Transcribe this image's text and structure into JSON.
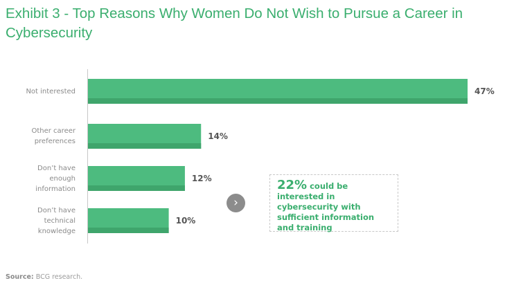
{
  "chart_data": {
    "type": "bar",
    "orientation": "horizontal",
    "title": "Exhibit 3 - Top Reasons Why Women Do Not Wish to Pursue a Career in Cybersecurity",
    "categories": [
      "Not interested",
      "Other career preferences",
      "Don’t have enough information",
      "Don’t have technical knowledge"
    ],
    "category_lines": [
      [
        "Not interested"
      ],
      [
        "Other career",
        "preferences"
      ],
      [
        "Don’t have",
        "enough",
        "information"
      ],
      [
        "Don’t have",
        "technical",
        "knowledge"
      ]
    ],
    "values": [
      47,
      14,
      12,
      10
    ],
    "value_labels": [
      "47%",
      "14%",
      "12%",
      "10%"
    ],
    "unit": "%",
    "xlim": [
      0,
      47
    ],
    "grid": false,
    "bar_color": "#4dbb7f",
    "bar_shade_color": "#3fa56c"
  },
  "callout": {
    "highlight": "22%",
    "text": " could be interested in cybersecurity with sufficient information and training"
  },
  "nav_icon": "chevron-right-icon",
  "source": {
    "label": "Source:",
    "text": " BCG research."
  }
}
